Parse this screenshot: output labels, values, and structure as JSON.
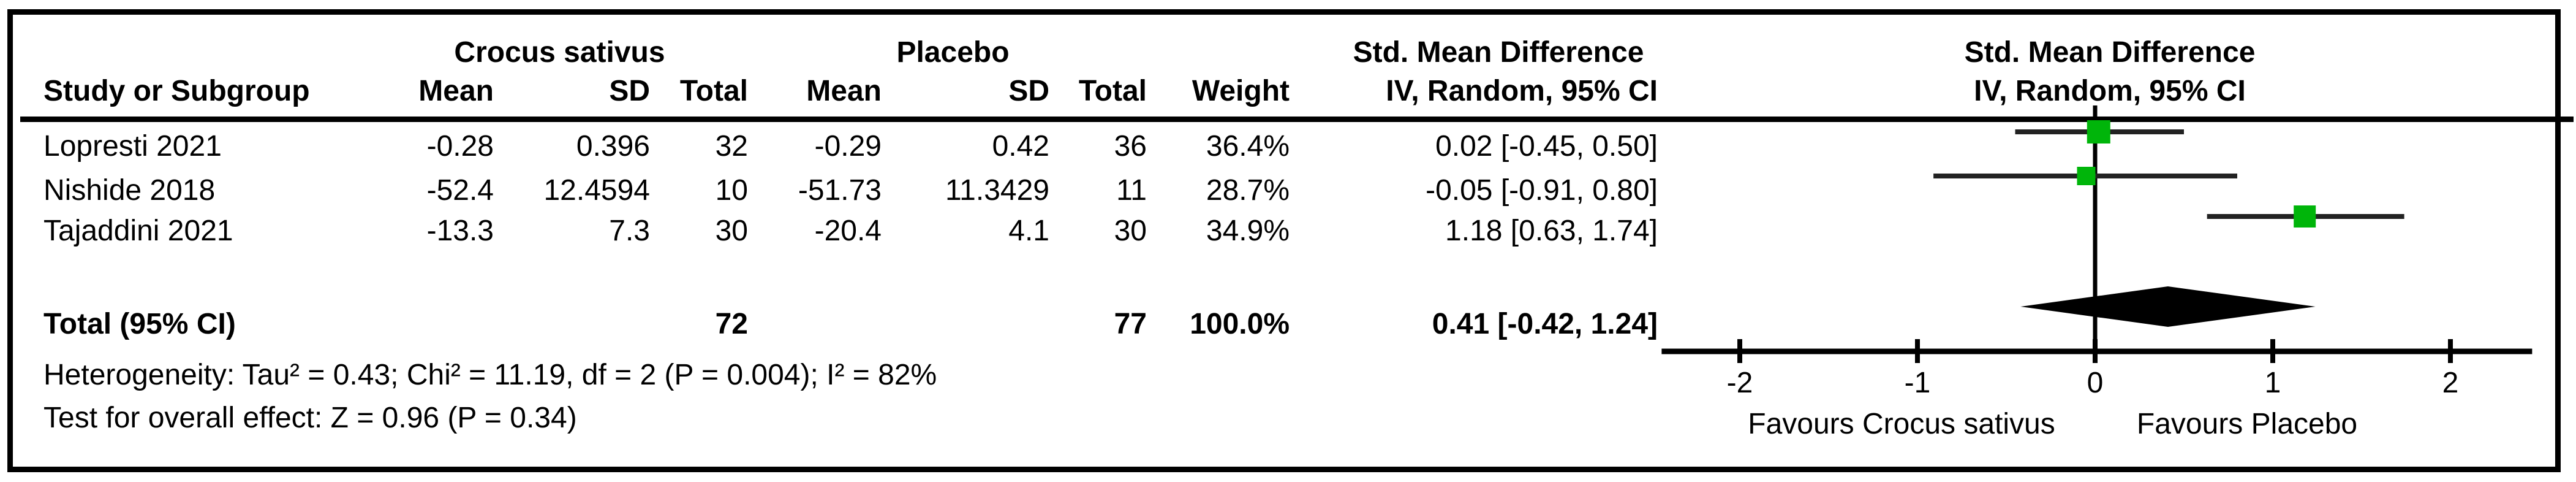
{
  "table": {
    "group1_label": "Crocus sativus",
    "group2_label": "Placebo",
    "effect_label_table": "Std. Mean Difference",
    "effect_label_plot": "Std. Mean Difference",
    "method_label_table": "IV, Random, 95% CI",
    "method_label_plot": "IV, Random, 95% CI",
    "col_headers": {
      "study": "Study or Subgroup",
      "mean1": "Mean",
      "sd1": "SD",
      "total1": "Total",
      "mean2": "Mean",
      "sd2": "SD",
      "total2": "Total",
      "weight": "Weight"
    },
    "rows": [
      {
        "study": "Lopresti 2021",
        "mean1": "-0.28",
        "sd1": "0.396",
        "total1": "32",
        "mean2": "-0.29",
        "sd2": "0.42",
        "total2": "36",
        "weight": "36.4%",
        "ci": "0.02 [-0.45, 0.50]"
      },
      {
        "study": "Nishide 2018",
        "mean1": "-52.4",
        "sd1": "12.4594",
        "total1": "10",
        "mean2": "-51.73",
        "sd2": "11.3429",
        "total2": "11",
        "weight": "28.7%",
        "ci": "-0.05 [-0.91, 0.80]"
      },
      {
        "study": "Tajaddini 2021",
        "mean1": "-13.3",
        "sd1": "7.3",
        "total1": "30",
        "mean2": "-20.4",
        "sd2": "4.1",
        "total2": "30",
        "weight": "34.9%",
        "ci": "1.18 [0.63, 1.74]"
      }
    ],
    "total_row": {
      "label": "Total (95% CI)",
      "total1": "72",
      "total2": "77",
      "weight": "100.0%",
      "ci": "0.41 [-0.42, 1.24]"
    },
    "heterogeneity": "Heterogeneity: Tau² = 0.43; Chi² = 11.19, df = 2 (P = 0.004); I² = 82%",
    "overall_effect": "Test for overall effect: Z = 0.96 (P = 0.34)"
  },
  "chart_data": {
    "type": "forest",
    "effect_measure": "Std. Mean Difference",
    "model": "IV, Random, 95% CI",
    "studies": [
      {
        "name": "Lopresti 2021",
        "estimate": 0.02,
        "ci_lower": -0.45,
        "ci_upper": 0.5,
        "weight_pct": 36.4
      },
      {
        "name": "Nishide 2018",
        "estimate": -0.05,
        "ci_lower": -0.91,
        "ci_upper": 0.8,
        "weight_pct": 28.7
      },
      {
        "name": "Tajaddini 2021",
        "estimate": 1.18,
        "ci_lower": 0.63,
        "ci_upper": 1.74,
        "weight_pct": 34.9
      }
    ],
    "total": {
      "label": "Total (95% CI)",
      "estimate": 0.41,
      "ci_lower": -0.42,
      "ci_upper": 1.24,
      "weight_pct": 100.0
    },
    "axis": {
      "ticks": [
        -2,
        -1,
        0,
        1,
        2
      ],
      "line_range": [
        -2.44,
        2.46
      ],
      "zero": 0
    },
    "favours_left": "Favours Crocus sativus",
    "favours_right": "Favours Placebo",
    "square_color": "#00b50a",
    "ci_line_color": "#222222",
    "diamond_color": "#000000",
    "axis_color": "#000000"
  }
}
